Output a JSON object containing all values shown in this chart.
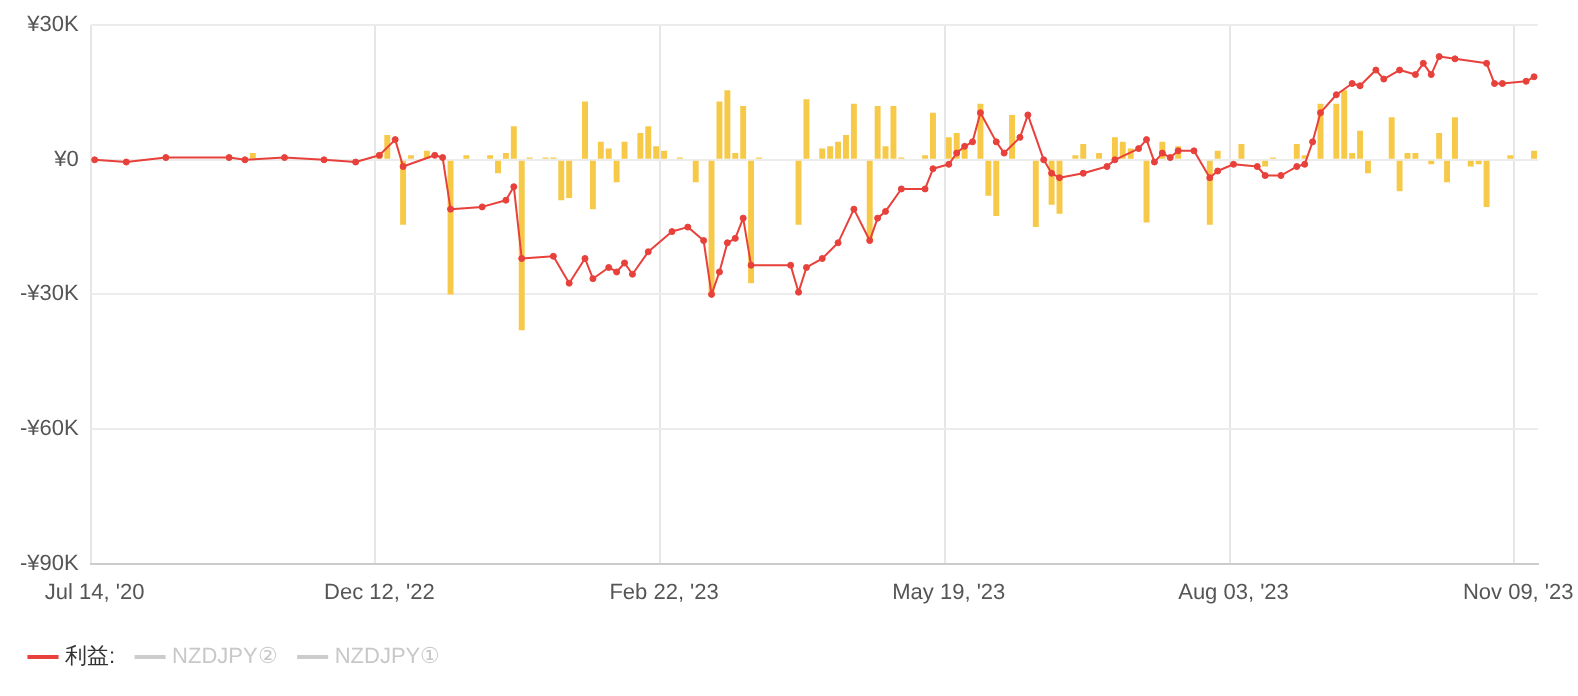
{
  "chart_data": {
    "type": "bar",
    "categories": [
      "Jul 14, '20",
      null,
      null,
      null,
      null,
      null,
      null,
      null,
      null,
      null,
      null,
      null,
      null,
      null,
      null,
      null,
      null,
      null,
      null,
      null,
      null,
      null,
      null,
      null,
      null,
      null,
      null,
      null,
      null,
      null,
      null,
      null,
      null,
      null,
      null,
      null,
      "Dec 12, '22",
      null,
      null,
      null,
      null,
      null,
      null,
      null,
      null,
      null,
      null,
      null,
      null,
      null,
      null,
      null,
      null,
      null,
      null,
      null,
      null,
      null,
      null,
      null,
      null,
      null,
      null,
      null,
      null,
      null,
      null,
      null,
      null,
      null,
      null,
      null,
      "Feb 22, '23",
      null,
      null,
      null,
      null,
      null,
      null,
      null,
      null,
      null,
      null,
      null,
      null,
      null,
      null,
      null,
      null,
      null,
      null,
      null,
      null,
      null,
      null,
      null,
      null,
      null,
      null,
      null,
      null,
      null,
      null,
      null,
      null,
      null,
      null,
      null,
      "May 19, '23",
      null,
      null,
      null,
      null,
      null,
      null,
      null,
      null,
      null,
      null,
      null,
      null,
      null,
      null,
      null,
      null,
      null,
      null,
      null,
      null,
      null,
      null,
      null,
      null,
      null,
      null,
      null,
      null,
      null,
      null,
      null,
      null,
      null,
      null,
      null,
      "Aug 03, '23",
      null,
      null,
      null,
      null,
      null,
      null,
      null,
      null,
      null,
      null,
      null,
      null,
      null,
      null,
      null,
      null,
      null,
      null,
      null,
      null,
      null,
      null,
      null,
      null,
      null,
      null,
      null,
      null,
      null,
      null,
      null,
      null,
      null,
      null,
      null,
      "Nov 09, '23",
      null,
      null
    ],
    "ylim": [
      -90000,
      30000
    ],
    "yticks": [
      {
        "value": -90000,
        "label": "-¥90K"
      },
      {
        "value": -60000,
        "label": "-¥60K"
      },
      {
        "value": -30000,
        "label": "-¥30K"
      },
      {
        "value": 0,
        "label": "¥0"
      },
      {
        "value": 30000,
        "label": "¥30K"
      }
    ],
    "grid": true,
    "legend": "bottom",
    "marker": "circle",
    "series": [
      {
        "name": "利益:",
        "type": "line",
        "color": "#e8403a",
        "values": [
          0,
          null,
          null,
          null,
          -500,
          null,
          null,
          null,
          null,
          500,
          null,
          null,
          null,
          null,
          null,
          null,
          null,
          500,
          null,
          0,
          null,
          null,
          null,
          null,
          500,
          null,
          null,
          null,
          null,
          0,
          null,
          null,
          null,
          -500,
          null,
          null,
          1000,
          null,
          4500,
          -1500,
          null,
          null,
          null,
          1000,
          500,
          -11000,
          null,
          null,
          null,
          -10500,
          null,
          null,
          -9000,
          -6000,
          -22000,
          null,
          null,
          null,
          -21500,
          null,
          -27500,
          null,
          -22000,
          -26500,
          null,
          -24000,
          -25000,
          -23000,
          -25500,
          null,
          -20500,
          null,
          null,
          -16000,
          null,
          -15000,
          null,
          -18000,
          -30000,
          -25000,
          -18500,
          -17500,
          -13000,
          -23500,
          null,
          null,
          null,
          null,
          -23500,
          -29500,
          -24000,
          null,
          -22000,
          null,
          -18500,
          null,
          -11000,
          null,
          -18000,
          -13000,
          -11500,
          null,
          -6500,
          null,
          null,
          -6500,
          -2000,
          null,
          -1000,
          1500,
          3000,
          4000,
          10500,
          null,
          4000,
          1500,
          null,
          5000,
          10000,
          null,
          0,
          -3000,
          -4000,
          null,
          null,
          -3000,
          null,
          null,
          -1500,
          0,
          null,
          null,
          2500,
          4500,
          -500,
          1500,
          500,
          2000,
          null,
          2000,
          null,
          -4000,
          -2500,
          null,
          -1000,
          null,
          null,
          -1500,
          -3500,
          null,
          -3500,
          null,
          -1500,
          -1000,
          4000,
          10500,
          null,
          14500,
          null,
          17000,
          16500,
          null,
          20000,
          18000,
          null,
          20000,
          null,
          19000,
          21500,
          19000,
          23000,
          null,
          22500,
          null,
          null,
          null,
          21500,
          17000,
          17000,
          null,
          null,
          17500,
          18500
        ]
      },
      {
        "color": "#f7c948",
        "values": [
          null,
          null,
          null,
          null,
          null,
          null,
          null,
          null,
          null,
          null,
          null,
          null,
          null,
          null,
          null,
          null,
          null,
          null,
          null,
          null,
          1500,
          null,
          null,
          null,
          null,
          null,
          null,
          null,
          null,
          null,
          null,
          null,
          null,
          null,
          null,
          null,
          1500,
          5500,
          null,
          -14500,
          1000,
          null,
          2000,
          null,
          null,
          -30000,
          null,
          1000,
          null,
          null,
          1000,
          -3000,
          1500,
          7500,
          -38000,
          500,
          null,
          500,
          500,
          -9000,
          -8500,
          null,
          13000,
          -11000,
          4000,
          2500,
          -5000,
          4000,
          null,
          6000,
          7500,
          3000,
          2000,
          null,
          500,
          null,
          -5000,
          null,
          -30000,
          13000,
          15500,
          1500,
          12000,
          -27500,
          500,
          null,
          null,
          null,
          null,
          -14500,
          13500,
          null,
          2500,
          3000,
          4000,
          5500,
          12500,
          null,
          -18000,
          12000,
          3000,
          12000,
          500,
          null,
          null,
          1000,
          10500,
          null,
          5000,
          6000,
          2500,
          null,
          12500,
          -8000,
          -12500,
          null,
          10000,
          null,
          null,
          -15000,
          null,
          -10000,
          -12000,
          null,
          1000,
          3500,
          null,
          1500,
          null,
          5000,
          4000,
          2500,
          null,
          -14000,
          null,
          4000,
          null,
          3000,
          null,
          null,
          null,
          -14500,
          2000,
          null,
          null,
          3500,
          null,
          null,
          -1500,
          500,
          null,
          null,
          3500,
          1000,
          null,
          12500,
          null,
          12500,
          15500,
          1500,
          6500,
          -3000,
          null,
          null,
          9500,
          -7000,
          1500,
          1500,
          null,
          -1000,
          6000,
          -5000,
          9500,
          null,
          -1500,
          -1000,
          -10500,
          null,
          null,
          1000,
          null,
          null,
          2000
        ]
      },
      {
        "name": "NZDJPY②",
        "type": "line",
        "color": "#cccccc",
        "values": [
          null,
          null,
          null,
          null,
          null,
          null,
          null,
          null,
          null,
          null,
          null,
          null,
          null,
          null,
          null,
          null,
          null,
          null,
          null,
          null,
          null,
          null,
          null,
          null,
          null,
          null,
          null,
          null,
          null,
          null,
          null,
          null,
          null,
          null,
          null,
          null,
          null,
          null,
          null,
          null,
          null,
          null,
          null,
          null,
          null,
          null,
          null,
          null,
          null,
          null,
          null,
          null,
          null,
          null,
          null,
          null,
          null,
          null,
          null,
          null,
          null,
          null,
          null,
          null,
          null,
          null,
          null,
          null,
          null,
          null,
          null,
          null,
          null,
          null,
          null,
          null,
          null,
          null,
          null,
          null,
          null,
          null,
          null,
          null,
          null,
          null,
          null,
          null,
          null,
          null,
          null,
          null,
          null,
          null,
          null,
          null,
          null,
          null,
          null,
          null,
          null,
          null,
          null,
          null,
          null,
          null,
          null,
          null,
          null,
          null,
          null,
          null,
          null,
          null,
          null,
          null,
          null,
          null,
          null,
          null,
          null,
          null,
          null,
          null,
          null,
          null,
          null,
          null,
          null,
          null,
          null,
          null,
          null,
          null,
          null,
          null,
          null,
          null,
          null,
          null,
          null,
          null,
          null,
          null,
          null,
          null,
          null,
          null,
          null,
          null,
          null,
          null,
          null,
          null,
          null,
          null,
          null,
          null,
          null,
          null,
          null,
          null,
          null,
          null,
          null,
          null,
          null,
          null,
          null,
          null,
          null,
          null,
          null,
          null,
          null,
          null,
          null,
          null,
          null,
          null,
          null,
          null,
          null
        ]
      },
      {
        "name": "NZDJPY①",
        "type": "line",
        "color": "#cccccc",
        "values": [
          null,
          null,
          null,
          null,
          null,
          null,
          null,
          null,
          null,
          null,
          null,
          null,
          null,
          null,
          null,
          null,
          null,
          null,
          null,
          null,
          null,
          null,
          null,
          null,
          null,
          null,
          null,
          null,
          null,
          null,
          null,
          null,
          null,
          null,
          null,
          null,
          null,
          null,
          null,
          null,
          null,
          null,
          null,
          null,
          null,
          null,
          null,
          null,
          null,
          null,
          null,
          null,
          null,
          null,
          null,
          null,
          null,
          null,
          null,
          null,
          null,
          null,
          null,
          null,
          null,
          null,
          null,
          null,
          null,
          null,
          null,
          null,
          null,
          null,
          null,
          null,
          null,
          null,
          null,
          null,
          null,
          null,
          null,
          null,
          null,
          null,
          null,
          null,
          null,
          null,
          null,
          null,
          null,
          null,
          null,
          null,
          null,
          null,
          null,
          null,
          null,
          null,
          null,
          null,
          null,
          null,
          null,
          null,
          null,
          null,
          null,
          null,
          null,
          null,
          null,
          null,
          null,
          null,
          null,
          null,
          null,
          null,
          null,
          null,
          null,
          null,
          null,
          null,
          null,
          null,
          null,
          null,
          null,
          null,
          null,
          null,
          null,
          null,
          null,
          null,
          null,
          null,
          null,
          null,
          null,
          null,
          null,
          null,
          null,
          null,
          null,
          null,
          null,
          null,
          null,
          null,
          null,
          null,
          null,
          null,
          null,
          null,
          null,
          null,
          null,
          null,
          null,
          null,
          null,
          null,
          null,
          null,
          null,
          null,
          null,
          null,
          null,
          null,
          null,
          null,
          null,
          null,
          null
        ]
      }
    ]
  }
}
